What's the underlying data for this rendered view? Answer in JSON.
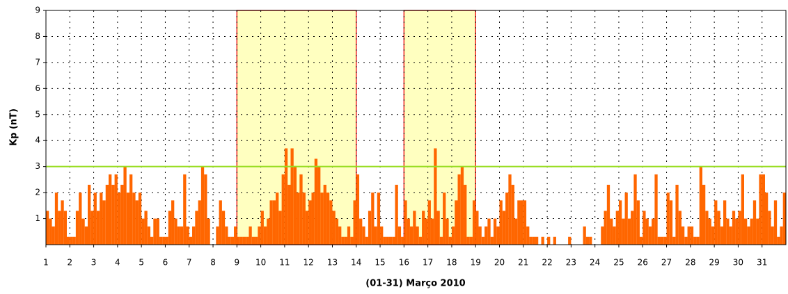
{
  "chart_data": {
    "type": "bar",
    "xlabel": "(01-31) Março 2010",
    "ylabel": "Kp (nT)",
    "xlim": [
      1,
      32
    ],
    "ylim": [
      0,
      9
    ],
    "xticks": [
      1,
      2,
      3,
      4,
      5,
      6,
      7,
      8,
      9,
      10,
      11,
      12,
      13,
      14,
      15,
      16,
      17,
      18,
      19,
      20,
      21,
      22,
      23,
      24,
      25,
      26,
      27,
      28,
      29,
      30,
      31
    ],
    "yticks": [
      1,
      2,
      3,
      4,
      5,
      6,
      7,
      8,
      9
    ],
    "grid": true,
    "color": "#ff6600",
    "reference_line": {
      "value": 3,
      "color": "#99dd22"
    },
    "highlights": [
      {
        "xlim": [
          9,
          14
        ],
        "color": "#ffffc0",
        "edge": "#ee2222"
      },
      {
        "xlim": [
          16,
          19
        ],
        "color": "#ffffc0",
        "edge": "#ee2222"
      }
    ],
    "x": [
      1,
      1.125,
      1.25,
      1.375,
      1.5,
      1.625,
      1.75,
      1.875,
      2,
      2.125,
      2.25,
      2.375,
      2.5,
      2.625,
      2.75,
      2.875,
      3,
      3.125,
      3.25,
      3.375,
      3.5,
      3.625,
      3.75,
      3.875,
      4,
      4.125,
      4.25,
      4.375,
      4.5,
      4.625,
      4.75,
      4.875,
      5,
      5.125,
      5.25,
      5.375,
      5.5,
      5.625,
      5.75,
      5.875,
      6,
      6.125,
      6.25,
      6.375,
      6.5,
      6.625,
      6.75,
      6.875,
      7,
      7.125,
      7.25,
      7.375,
      7.5,
      7.625,
      7.75,
      7.875,
      8,
      8.125,
      8.25,
      8.375,
      8.5,
      8.625,
      8.75,
      8.875,
      9,
      9.125,
      9.25,
      9.375,
      9.5,
      9.625,
      9.75,
      9.875,
      10,
      10.125,
      10.25,
      10.375,
      10.5,
      10.625,
      10.75,
      10.875,
      11,
      11.125,
      11.25,
      11.375,
      11.5,
      11.625,
      11.75,
      11.875,
      12,
      12.125,
      12.25,
      12.375,
      12.5,
      12.625,
      12.75,
      12.875,
      13,
      13.125,
      13.25,
      13.375,
      13.5,
      13.625,
      13.75,
      13.875,
      14,
      14.125,
      14.25,
      14.375,
      14.5,
      14.625,
      14.75,
      14.875,
      15,
      15.125,
      15.25,
      15.375,
      15.5,
      15.625,
      15.75,
      15.875,
      16,
      16.125,
      16.25,
      16.375,
      16.5,
      16.625,
      16.75,
      16.875,
      17,
      17.125,
      17.25,
      17.375,
      17.5,
      17.625,
      17.75,
      17.875,
      18,
      18.125,
      18.25,
      18.375,
      18.5,
      18.625,
      18.75,
      18.875,
      19,
      19.125,
      19.25,
      19.375,
      19.5,
      19.625,
      19.75,
      19.875,
      20,
      20.125,
      20.25,
      20.375,
      20.5,
      20.625,
      20.75,
      20.875,
      21,
      21.125,
      21.25,
      21.375,
      21.5,
      21.625,
      21.75,
      21.875,
      22,
      22.125,
      22.25,
      22.375,
      22.5,
      22.625,
      22.75,
      22.875,
      23,
      23.125,
      23.25,
      23.375,
      23.5,
      23.625,
      23.75,
      23.875,
      24,
      24.125,
      24.25,
      24.375,
      24.5,
      24.625,
      24.75,
      24.875,
      25,
      25.125,
      25.25,
      25.375,
      25.5,
      25.625,
      25.75,
      25.875,
      26,
      26.125,
      26.25,
      26.375,
      26.5,
      26.625,
      26.75,
      26.875,
      27,
      27.125,
      27.25,
      27.375,
      27.5,
      27.625,
      27.75,
      27.875,
      28,
      28.125,
      28.25,
      28.375,
      28.5,
      28.625,
      28.75,
      28.875,
      29,
      29.125,
      29.25,
      29.375,
      29.5,
      29.625,
      29.75,
      29.875,
      30,
      30.125,
      30.25,
      30.375,
      30.5,
      30.625,
      30.75,
      30.875,
      31,
      31.125,
      31.25,
      31.375,
      31.5,
      31.625,
      31.75,
      31.875
    ],
    "values": [
      1.3,
      1,
      0.7,
      2,
      1.3,
      1.7,
      1.3,
      0.3,
      0.3,
      0.3,
      1.3,
      2,
      1,
      0.7,
      2.3,
      1.3,
      2,
      1.3,
      2,
      1.7,
      2.3,
      2.7,
      2.3,
      2.7,
      2,
      2.3,
      3,
      2,
      2.7,
      2,
      1.7,
      2,
      1,
      1.3,
      0.7,
      0.3,
      1,
      1,
      0.3,
      0.3,
      0.3,
      1.3,
      1.7,
      1,
      0.7,
      0.7,
      2.7,
      0.7,
      0.3,
      0.7,
      1.3,
      1.7,
      3,
      2.7,
      1,
      0,
      0,
      0.7,
      1.7,
      1.3,
      0.7,
      0.3,
      0.3,
      0.7,
      0.3,
      0.3,
      0.3,
      0.3,
      0.7,
      0.3,
      0.3,
      0.7,
      1.3,
      0.7,
      1,
      1.7,
      1.7,
      2,
      1.3,
      2.7,
      3.7,
      2.3,
      3.7,
      3,
      2,
      2.7,
      2,
      1.3,
      1.7,
      2,
      3.3,
      3,
      2,
      2.3,
      2,
      1.7,
      1.3,
      1,
      0.7,
      0.3,
      0.3,
      0.7,
      0.3,
      1.7,
      2.7,
      1,
      0.7,
      0.3,
      1.3,
      2,
      0.7,
      2,
      0.7,
      0.3,
      0.3,
      0.3,
      0.3,
      2.3,
      0.7,
      0.3,
      1.7,
      1,
      0.7,
      1.3,
      0.7,
      0.3,
      1.3,
      1,
      1.7,
      1,
      3.7,
      1.3,
      0.3,
      2,
      1,
      0.3,
      0.7,
      1.7,
      2.7,
      3,
      2.3,
      0.3,
      0.3,
      1.7,
      1.3,
      0.7,
      0.3,
      0.7,
      1,
      0.3,
      1,
      0.7,
      1.7,
      1.3,
      2,
      2.7,
      2.3,
      1,
      1.7,
      1.7,
      1.7,
      0.7,
      0.3,
      0.3,
      0.3,
      0,
      0.3,
      0,
      0.3,
      0,
      0.3,
      0,
      0,
      0,
      0,
      0.3,
      0,
      0,
      0,
      0,
      0.7,
      0.3,
      0.3,
      0,
      0,
      0,
      0.7,
      1.3,
      2.3,
      1,
      0.7,
      1.3,
      1.7,
      1,
      2,
      1,
      1.3,
      2.7,
      1.7,
      0.3,
      1.3,
      1,
      0.7,
      1,
      2.7,
      0.3,
      0.3,
      0.3,
      2,
      1.7,
      0.3,
      2.3,
      1.3,
      0.7,
      0.3,
      0.7,
      0.7,
      0.3,
      0.3,
      3,
      2.3,
      1.3,
      1,
      0.7,
      1.7,
      1.3,
      0.7,
      1.7,
      1,
      0.7,
      1.3,
      1,
      1.3,
      2.7,
      1,
      0.7,
      1,
      1.7,
      1,
      2.7,
      2.7,
      2,
      1.3,
      0.7,
      1.7,
      0.3,
      0.7,
      2
    ]
  }
}
